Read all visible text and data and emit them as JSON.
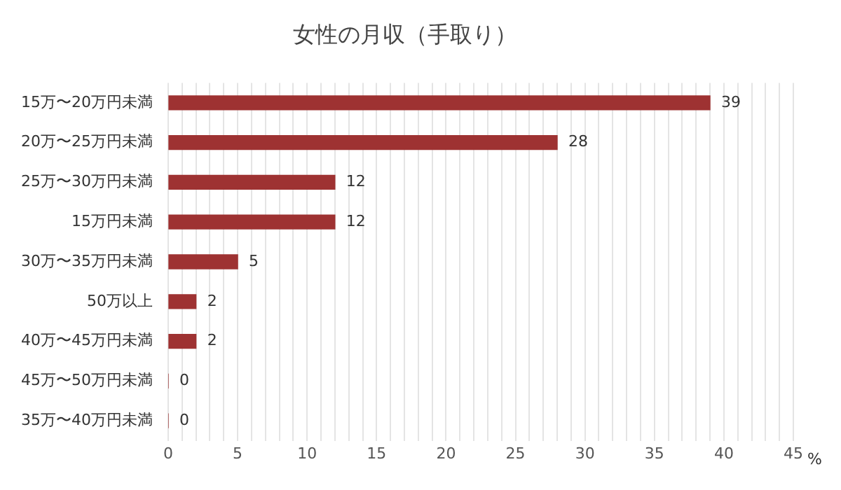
{
  "chart_data": {
    "type": "bar",
    "orientation": "horizontal",
    "title": "女性の月収（手取り）",
    "xlabel": "%",
    "categories": [
      "15万〜20万円未満",
      "20万〜25万円未満",
      "25万〜30万円未満",
      "15万円未満",
      "30万〜35万円未満",
      "50万以上",
      "40万〜45万円未満",
      "45万〜50万円未満",
      "35万〜40万円未満"
    ],
    "values": [
      39,
      28,
      12,
      12,
      5,
      2,
      2,
      0,
      0
    ],
    "color": "#9e3232",
    "xlim": [
      0,
      45
    ],
    "xticks": [
      0,
      {
        "value": 1,
        "label": null
      },
      {
        "value": 2,
        "label": null
      },
      {
        "value": 3,
        "label": null
      },
      {
        "value": 4,
        "label": null
      },
      5,
      {
        "value": 6,
        "label": null
      },
      {
        "value": 7,
        "label": null
      },
      {
        "value": 8,
        "label": null
      },
      {
        "value": 9,
        "label": null
      },
      10,
      {
        "value": 11,
        "label": null
      },
      {
        "value": 12,
        "label": null
      },
      {
        "value": 13,
        "label": null
      },
      {
        "value": 14,
        "label": null
      },
      15,
      {
        "value": 16,
        "label": null
      },
      {
        "value": 17,
        "label": null
      },
      {
        "value": 18,
        "label": null
      },
      {
        "value": 19,
        "label": null
      },
      20,
      {
        "value": 21,
        "label": null
      },
      {
        "value": 22,
        "label": null
      },
      {
        "value": 23,
        "label": null
      },
      {
        "value": 24,
        "label": null
      },
      25,
      {
        "value": 26,
        "label": null
      },
      {
        "value": 27,
        "label": null
      },
      {
        "value": 28,
        "label": null
      },
      {
        "value": 29,
        "label": null
      },
      30,
      {
        "value": 31,
        "label": null
      },
      {
        "value": 32,
        "label": null
      },
      {
        "value": 33,
        "label": null
      },
      {
        "value": 34,
        "label": null
      },
      35,
      {
        "value": 36,
        "label": null
      },
      {
        "value": 37,
        "label": null
      },
      {
        "value": 38,
        "label": null
      },
      {
        "value": 39,
        "label": null
      },
      40,
      {
        "value": 41,
        "label": null
      },
      {
        "value": 42,
        "label": null
      },
      {
        "value": 43,
        "label": null
      },
      {
        "value": 44,
        "label": null
      },
      45
    ],
    "grid": "x",
    "data_labels": true
  }
}
